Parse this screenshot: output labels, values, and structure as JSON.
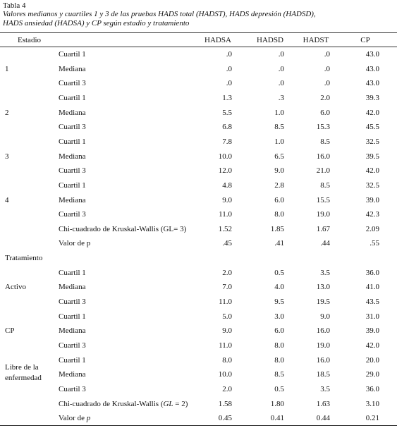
{
  "header": {
    "title": "Tabla 4",
    "caption": [
      "Valores medianos y cuartiles 1 y 3 de las pruebas HADS total (HADST), HADS depresión (HADSD),",
      "HADS ansiedad (HADSA) y CP según estadio y tratamiento"
    ]
  },
  "table": {
    "columns": [
      "Estadio",
      "HADSA",
      "HADSD",
      "HADST",
      "CP"
    ],
    "rows": [
      {
        "label": "Cuartil 1",
        "values": [
          ".0",
          ".0",
          ".0",
          "43.0"
        ]
      },
      {
        "stage": "1",
        "label": "Mediana",
        "values": [
          ".0",
          ".0",
          ".0",
          "43.0"
        ]
      },
      {
        "label": "Cuartil 3",
        "values": [
          ".0",
          ".0",
          ".0",
          "43.0"
        ]
      },
      {
        "label": "Cuartil 1",
        "values": [
          "1.3",
          ".3",
          "2.0",
          "39.3"
        ]
      },
      {
        "stage": "2",
        "label": "Mediana",
        "values": [
          "5.5",
          "1.0",
          "6.0",
          "42.0"
        ]
      },
      {
        "label": "Cuartil 3",
        "values": [
          "6.8",
          "8.5",
          "15.3",
          "45.5"
        ]
      },
      {
        "label": "Cuartil 1",
        "values": [
          "7.8",
          "1.0",
          "8.5",
          "32.5"
        ]
      },
      {
        "stage": "3",
        "label": "Mediana",
        "values": [
          "10.0",
          "6.5",
          "16.0",
          "39.5"
        ]
      },
      {
        "label": "Cuartil 3",
        "values": [
          "12.0",
          "9.0",
          "21.0",
          "42.0"
        ]
      },
      {
        "label": "Cuartil 1",
        "values": [
          "4.8",
          "2.8",
          "8.5",
          "32.5"
        ]
      },
      {
        "stage": "4",
        "label": "Mediana",
        "values": [
          "9.0",
          "6.0",
          "15.5",
          "39.0"
        ]
      },
      {
        "label": "Cuartil 3",
        "values": [
          "11.0",
          "8.0",
          "19.0",
          "42.3"
        ]
      },
      {
        "label": "Chi-cuadrado de Kruskal-Wallis (GL= 3)",
        "values": [
          "1.52",
          "1.85",
          "1.67",
          "2.09"
        ]
      },
      {
        "label": "Valor de p",
        "values": [
          ".45",
          ".41",
          ".44",
          ".55"
        ]
      },
      {
        "stage": "Tratamiento"
      },
      {
        "label": "Cuartil 1",
        "values": [
          "2.0",
          "0.5",
          "3.5",
          "36.0"
        ]
      },
      {
        "stage": "Activo",
        "label": "Mediana",
        "values": [
          "7.0",
          "4.0",
          "13.0",
          "41.0"
        ]
      },
      {
        "label": "Cuartil 3",
        "values": [
          "11.0",
          "9.5",
          "19.5",
          "43.5"
        ]
      },
      {
        "label": "Cuartil 1",
        "values": [
          "5.0",
          "3.0",
          "9.0",
          "31.0"
        ]
      },
      {
        "stage": "CP",
        "label": "Mediana",
        "values": [
          "9.0",
          "6.0",
          "16.0",
          "39.0"
        ]
      },
      {
        "label": "Cuartil 3",
        "values": [
          "11.0",
          "8.0",
          "19.0",
          "42.0"
        ]
      },
      {
        "stage": "Libre de la enfermedad",
        "label": "Cuartil 1",
        "values": [
          "8.0",
          "8.0",
          "16.0",
          "20.0"
        ]
      },
      {
        "label": "Mediana",
        "values": [
          "10.0",
          "8.5",
          "18.5",
          "29.0"
        ]
      },
      {
        "label": "Cuartil 3",
        "values": [
          "2.0",
          "0.5",
          "3.5",
          "36.0"
        ]
      },
      {
        "label": [
          {
            "text": "Chi-cuadrado de Kruskal-Wallis ("
          },
          {
            "text": "GL",
            "italic": true
          },
          {
            "text": " = 2)"
          }
        ],
        "values": [
          "1.58",
          "1.80",
          "1.63",
          "3.10"
        ]
      },
      {
        "label": [
          {
            "text": "Valor de "
          },
          {
            "text": "p",
            "italic": true
          }
        ],
        "values": [
          "0.45",
          "0.41",
          "0.44",
          "0.21"
        ]
      }
    ]
  }
}
